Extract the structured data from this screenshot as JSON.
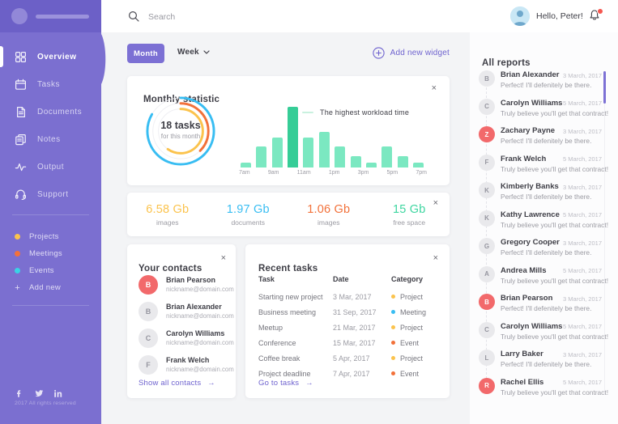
{
  "topbar": {
    "search_placeholder": "Search",
    "greeting": "Hello, Peter!"
  },
  "sidebar": {
    "nav": [
      {
        "label": "Overview",
        "icon": "grid-icon",
        "active": true
      },
      {
        "label": "Tasks",
        "icon": "calendar-icon",
        "active": false
      },
      {
        "label": "Documents",
        "icon": "document-icon",
        "active": false
      },
      {
        "label": "Notes",
        "icon": "notes-icon",
        "active": false
      },
      {
        "label": "Output",
        "icon": "pulse-icon",
        "active": false
      },
      {
        "label": "Support",
        "icon": "headset-icon",
        "active": false
      }
    ],
    "categories": [
      {
        "label": "Projects",
        "color": "#FBC34D"
      },
      {
        "label": "Meetings",
        "color": "#F2713A"
      },
      {
        "label": "Events",
        "color": "#39D3E5"
      }
    ],
    "add_new_label": "Add new",
    "footer": {
      "social": [
        "facebook-icon",
        "twitter-icon",
        "linkedin-icon"
      ],
      "copyright": "2017 All rights reserved"
    }
  },
  "controls": {
    "month_label": "Month",
    "week_label": "Week",
    "add_widget_label": "Add new widget"
  },
  "monthly": {
    "title": "Monthly statistic",
    "donut_value": "18 tasks",
    "donut_caption": "for this month",
    "legend": "The highest workload time"
  },
  "chart_data": [
    {
      "type": "bar",
      "title": "Monthly statistic — workload by hour",
      "x": [
        "7am",
        "8am",
        "9am",
        "10am",
        "11am",
        "12pm",
        "1pm",
        "2pm",
        "3pm",
        "4pm",
        "5pm",
        "6pm"
      ],
      "values": [
        8,
        34,
        49,
        100,
        49,
        58,
        34,
        19,
        8,
        34,
        19,
        8
      ],
      "unit": "percent of max workload",
      "highlight_index": 3,
      "highlight_label": "The highest workload time",
      "tick_labels": [
        "7am",
        "9am",
        "11am",
        "1pm",
        "3pm",
        "5pm",
        "7pm"
      ],
      "bar_color": "#7BE8C1",
      "highlight_color": "#36CD97",
      "grid": false
    },
    {
      "type": "donut",
      "center_value": "18 tasks",
      "center_caption": "for this month",
      "rings": [
        {
          "name": "outer",
          "color": "#38BDF2",
          "sweep_deg": 300
        },
        {
          "name": "middle",
          "color": "#F2713A",
          "sweep_deg": 135
        },
        {
          "name": "inner",
          "color": "#FBC34D",
          "sweep_deg": 215
        }
      ]
    }
  ],
  "storage": {
    "items": [
      {
        "value": "6.58 Gb",
        "label": "images",
        "color": "#FBC34D"
      },
      {
        "value": "1.97 Gb",
        "label": "documents",
        "color": "#38BDF2"
      },
      {
        "value": "1.06 Gb",
        "label": "images",
        "color": "#F2713A"
      },
      {
        "value": "15 Gb",
        "label": "free space",
        "color": "#3DD6A0"
      }
    ]
  },
  "contacts": {
    "title": "Your contacts",
    "link_label": "Show all contacts",
    "items": [
      {
        "name": "Brian Pearson",
        "email": "nickname@domain.com",
        "avatar": "letter",
        "initial": "B"
      },
      {
        "name": "Brian Alexander",
        "email": "nickname@domain.com",
        "avatar": "photo",
        "initial": "B"
      },
      {
        "name": "Carolyn Williams",
        "email": "nickname@domain.com",
        "avatar": "photo",
        "initial": "C"
      },
      {
        "name": "Frank Welch",
        "email": "nickname@domain.com",
        "avatar": "photo",
        "initial": "F"
      }
    ]
  },
  "tasks": {
    "title": "Recent tasks",
    "link_label": "Go to tasks",
    "columns": [
      "Task",
      "Date",
      "Category"
    ],
    "rows": [
      {
        "task": "Starting new project",
        "date": "3 Mar, 2017",
        "category": "Project",
        "color": "#FBC34D"
      },
      {
        "task": "Business meeting",
        "date": "31 Sep, 2017",
        "category": "Meeting",
        "color": "#38BDF2"
      },
      {
        "task": "Meetup",
        "date": "21 Mar, 2017",
        "category": "Project",
        "color": "#FBC34D"
      },
      {
        "task": "Conference",
        "date": "15 Mar, 2017",
        "category": "Event",
        "color": "#F2713A"
      },
      {
        "task": "Coffee break",
        "date": "5 Apr, 2017",
        "category": "Project",
        "color": "#FBC34D"
      },
      {
        "task": "Project deadline",
        "date": "7 Apr, 2017",
        "category": "Event",
        "color": "#F2713A"
      }
    ]
  },
  "reports": {
    "title": "All reports",
    "items": [
      {
        "name": "Brian Alexander",
        "date": "3 March, 2017",
        "message": "Perfect! I'll defenitely be there.",
        "avatar": "photo",
        "initial": "B"
      },
      {
        "name": "Carolyn Williams",
        "date": "5 March, 2017",
        "message": "Truly believe you'll get that contract!",
        "avatar": "photo",
        "initial": "C"
      },
      {
        "name": "Zachary Payne",
        "date": "3 March, 2017",
        "message": "Perfect! I'll defenitely be there.",
        "avatar": "letter",
        "initial": "Z"
      },
      {
        "name": "Frank Welch",
        "date": "5 March, 2017",
        "message": "Truly believe you'll get that contract!",
        "avatar": "photo",
        "initial": "F"
      },
      {
        "name": "Kimberly Banks",
        "date": "3 March, 2017",
        "message": "Perfect! I'll defenitely be there.",
        "avatar": "photo",
        "initial": "K"
      },
      {
        "name": "Kathy Lawrence",
        "date": "5 March, 2017",
        "message": "Truly believe you'll get that contract!",
        "avatar": "photo",
        "initial": "K"
      },
      {
        "name": "Gregory Cooper",
        "date": "3 March, 2017",
        "message": "Perfect! I'll defenitely be there.",
        "avatar": "photo",
        "initial": "G"
      },
      {
        "name": "Andrea Mills",
        "date": "5 March, 2017",
        "message": "Truly believe you'll get that contract!",
        "avatar": "photo",
        "initial": "A"
      },
      {
        "name": "Brian Pearson",
        "date": "3 March, 2017",
        "message": "Perfect! I'll defenitely be there.",
        "avatar": "letter",
        "initial": "B"
      },
      {
        "name": "Carolyn Williams",
        "date": "5 March, 2017",
        "message": "Truly believe you'll get that contract!",
        "avatar": "photo",
        "initial": "C"
      },
      {
        "name": "Larry Baker",
        "date": "3 March, 2017",
        "message": "Perfect! I'll defenitely be there.",
        "avatar": "photo",
        "initial": "L"
      },
      {
        "name": "Rachel Ellis",
        "date": "5 March, 2017",
        "message": "Truly believe you'll get that contract!",
        "avatar": "letter",
        "initial": "R"
      }
    ]
  }
}
